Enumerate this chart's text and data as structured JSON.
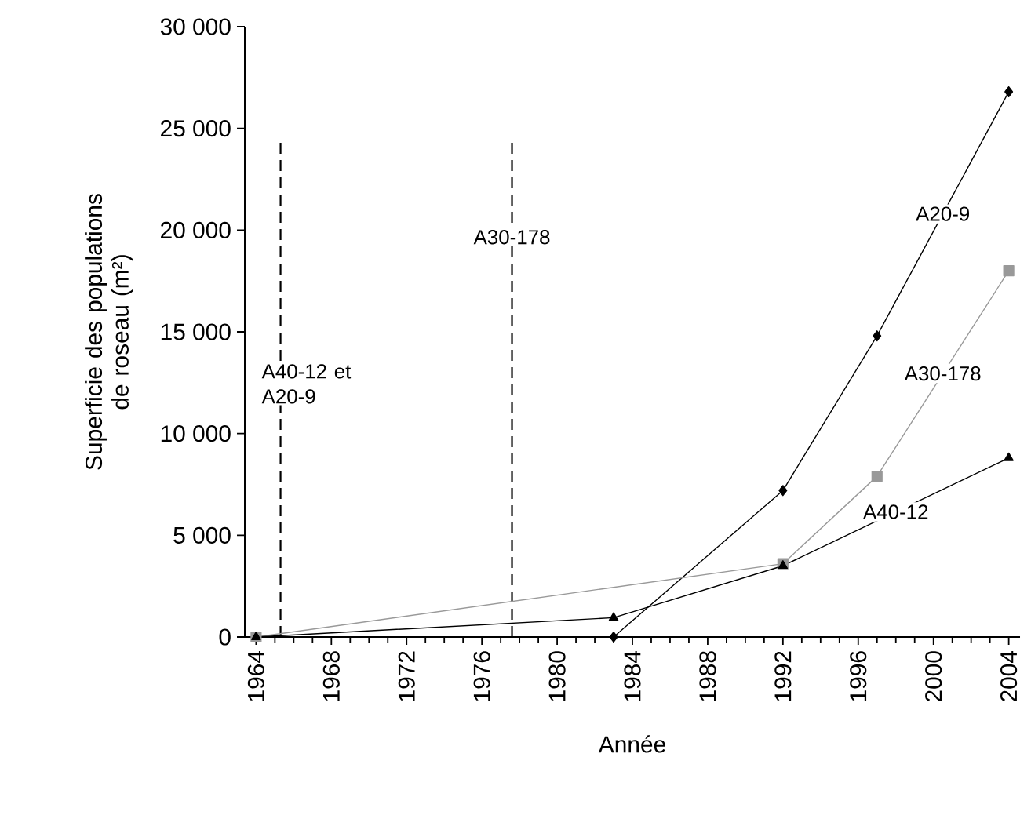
{
  "chart_data": {
    "type": "line",
    "xlabel": "Année",
    "ylabel": "Superficie des populations de roseau (m²)",
    "xlim": [
      1963.4,
      2004.6
    ],
    "xticks": [
      1964,
      1968,
      1972,
      1976,
      1980,
      1984,
      1988,
      1992,
      1996,
      2000,
      2004
    ],
    "ylim": [
      0,
      30000
    ],
    "yticks": [
      0,
      {
        "value": 5000,
        "label": "5 000"
      },
      {
        "value": 10000,
        "label": "10 000"
      },
      {
        "value": 15000,
        "label": "15 000"
      },
      {
        "value": 20000,
        "label": "20 000"
      },
      {
        "value": 25000,
        "label": "25 000"
      },
      {
        "value": 30000,
        "label": "30 000"
      }
    ],
    "grid": false,
    "series": [
      {
        "name": "A20-9",
        "color": "#000000",
        "marker": "diamond",
        "x": [
          1983,
          1992,
          1997,
          2004
        ],
        "values": [
          0,
          7200,
          14800,
          26800
        ]
      },
      {
        "name": "A30-178",
        "color": "#999999",
        "marker": "square",
        "x": [
          1964,
          1992,
          1997,
          2004
        ],
        "values": [
          0,
          3600,
          7900,
          18000
        ]
      },
      {
        "name": "A40-12",
        "color": "#000000",
        "marker": "triangle",
        "x": [
          1964,
          1983,
          1992,
          2004
        ],
        "values": [
          0,
          950,
          3500,
          8800
        ]
      }
    ],
    "ref_lines": [
      {
        "axis": "x",
        "value": 1965.3,
        "label": "A40-12 et A20-9",
        "line_style": "dashed",
        "color": "#000000"
      },
      {
        "axis": "x",
        "value": 1977.6,
        "label": "A30-178",
        "line_style": "dashed",
        "color": "#000000"
      }
    ]
  }
}
